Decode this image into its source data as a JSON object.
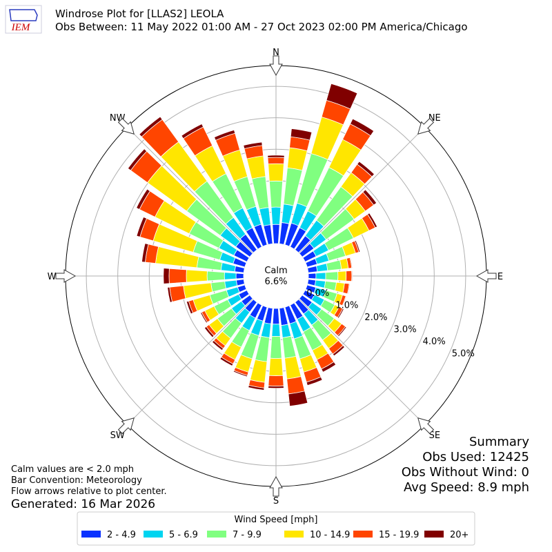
{
  "chart_data": {
    "type": "windrose",
    "logo": "IEM",
    "title": "Windrose Plot for [LLAS2] LEOLA",
    "subtitle": "Obs Between: 11 May 2022 01:00 AM - 27 Oct 2023 02:00 PM America/Chicago",
    "compass": [
      "N",
      "NE",
      "E",
      "SE",
      "S",
      "SW",
      "W",
      "NW"
    ],
    "theta": [
      0,
      10,
      20,
      30,
      40,
      50,
      60,
      70,
      80,
      90,
      100,
      110,
      120,
      130,
      140,
      150,
      160,
      170,
      180,
      190,
      200,
      210,
      220,
      230,
      240,
      250,
      260,
      270,
      280,
      290,
      300,
      310,
      320,
      330,
      340,
      350
    ],
    "ylim": [
      0,
      5.66
    ],
    "yticks": [
      {
        "value": 0,
        "label": "0.0%"
      },
      {
        "value": 1,
        "label": "1.0%"
      },
      {
        "value": 2,
        "label": "2.0%"
      },
      {
        "value": 3,
        "label": "3.0%"
      },
      {
        "value": 4,
        "label": "4.0%"
      },
      {
        "value": 5,
        "label": "5.0%"
      }
    ],
    "grid": true,
    "calm": {
      "label": "Calm",
      "value": 6.6,
      "value_label": "6.6%"
    },
    "legend_title": "Wind Speed [mph]",
    "series": [
      {
        "name": "2 - 4.9",
        "color": "#0a32ff",
        "values": [
          0.61,
          0.68,
          0.72,
          0.68,
          0.55,
          0.46,
          0.39,
          0.33,
          0.29,
          0.24,
          0.24,
          0.29,
          0.33,
          0.39,
          0.46,
          0.5,
          0.55,
          0.55,
          0.5,
          0.5,
          0.46,
          0.46,
          0.39,
          0.33,
          0.29,
          0.24,
          0.24,
          0.24,
          0.29,
          0.39,
          0.46,
          0.55,
          0.61,
          0.68,
          0.68,
          0.61
        ]
      },
      {
        "name": "5 - 6.9",
        "color": "#00d4f0",
        "values": [
          0.55,
          0.59,
          0.66,
          0.59,
          0.61,
          0.48,
          0.44,
          0.39,
          0.33,
          0.31,
          0.31,
          0.33,
          0.35,
          0.37,
          0.44,
          0.44,
          0.5,
          0.39,
          0.39,
          0.44,
          0.48,
          0.44,
          0.44,
          0.39,
          0.39,
          0.37,
          0.37,
          0.37,
          0.44,
          0.44,
          0.53,
          0.61,
          0.66,
          0.7,
          0.59,
          0.55
        ]
      },
      {
        "name": "7 - 9.9",
        "color": "#80ff80",
        "values": [
          0.83,
          1.16,
          1.64,
          1.54,
          1.32,
          1.1,
          0.88,
          0.55,
          0.44,
          0.39,
          0.35,
          0.37,
          0.37,
          0.5,
          0.59,
          0.66,
          0.66,
          0.66,
          0.7,
          0.77,
          0.77,
          0.59,
          0.59,
          0.55,
          0.48,
          0.55,
          0.44,
          0.55,
          0.77,
          0.88,
          1.05,
          1.32,
          1.43,
          1.21,
          0.99,
          0.99
        ]
      },
      {
        "name": "10 - 14.9",
        "color": "#ffe600",
        "values": [
          0.55,
          0.64,
          1.21,
          0.99,
          0.55,
          0.44,
          0.55,
          0.33,
          0.22,
          0.26,
          0.26,
          0.18,
          0.15,
          0.29,
          0.33,
          0.33,
          0.44,
          0.66,
          0.55,
          0.66,
          0.44,
          0.44,
          0.29,
          0.33,
          0.33,
          0.55,
          0.88,
          0.66,
          1.32,
          1.32,
          1.21,
          1.54,
          1.54,
          0.99,
          0.88,
          0.66
        ]
      },
      {
        "name": "15 - 19.9",
        "color": "#ff4500",
        "values": [
          0.2,
          0.35,
          0.55,
          0.55,
          0.33,
          0.33,
          0.22,
          0.11,
          0.11,
          0.18,
          0.15,
          0.11,
          0.13,
          0.15,
          0.22,
          0.33,
          0.33,
          0.48,
          0.33,
          0.18,
          0.11,
          0.15,
          0.11,
          0.11,
          0.11,
          0.15,
          0.44,
          0.55,
          0.33,
          0.44,
          0.55,
          0.66,
          0.88,
          0.66,
          0.55,
          0.33
        ]
      },
      {
        "name": "20+",
        "color": "#800000",
        "values": [
          0.07,
          0.26,
          0.55,
          0.18,
          0.11,
          0.11,
          0.07,
          0.04,
          0.02,
          0.02,
          0.02,
          0.02,
          0.04,
          0.04,
          0.07,
          0.11,
          0.11,
          0.39,
          0.07,
          0.07,
          0.04,
          0.07,
          0.07,
          0.07,
          0.04,
          0.07,
          0.07,
          0.18,
          0.11,
          0.11,
          0.11,
          0.11,
          0.11,
          0.11,
          0.11,
          0.11
        ]
      }
    ],
    "notes": [
      "Calm values are < 2.0 mph",
      "Bar Convention: Meteorology",
      "Flow arrows relative to plot center."
    ],
    "generated": "Generated: 16 Mar 2026",
    "summary": [
      "Summary",
      "Obs Used: 12425",
      "Obs Without Wind: 0",
      "Avg Speed: 8.9 mph"
    ]
  }
}
